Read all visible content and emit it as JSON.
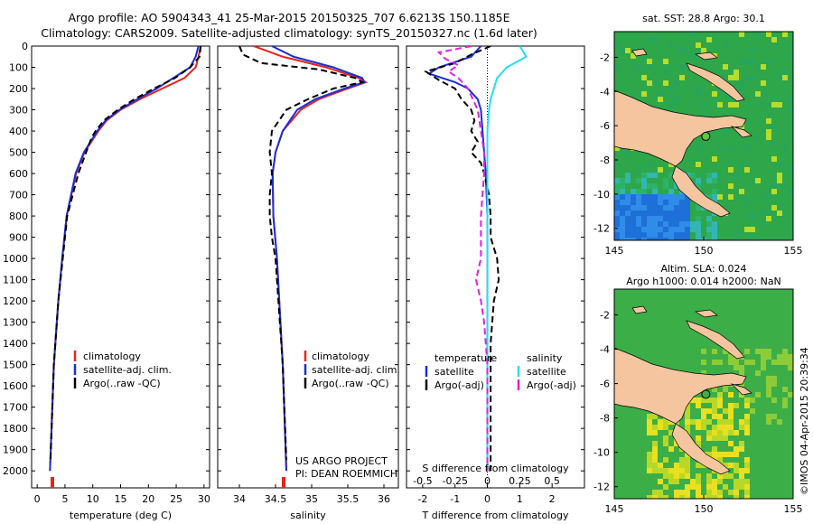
{
  "titles": {
    "line1": "Argo profile: AO 5904343_41 25-Mar-2015 20150325_707 6.6213S 150.1185E",
    "line2": "Climatology: CARS2009. Satellite-adjusted climatology: synTS_20150327.nc (1.6d later)"
  },
  "colors": {
    "climatology": "#e8241c",
    "satellite": "#1a2fd6",
    "argo": "#000000",
    "sat_salinity": "#22e0f0",
    "argo_salinity": "#e020e0",
    "land": "#f5c5a0"
  },
  "chart_data": [
    {
      "type": "line",
      "panel": "temperature",
      "xlabel": "temperature (deg C)",
      "ylabel": "",
      "xlim": [
        -1,
        31
      ],
      "ylim": [
        2080,
        0
      ],
      "xticks": [
        "0",
        "5",
        "10",
        "15",
        "20",
        "25",
        "30"
      ],
      "yticks": [
        "0",
        "100",
        "200",
        "300",
        "400",
        "500",
        "600",
        "700",
        "800",
        "900",
        "1000",
        "1100",
        "1200",
        "1300",
        "1400",
        "1500",
        "1600",
        "1700",
        "1800",
        "1900",
        "2000"
      ],
      "legend": [
        "climatology",
        "satellite-adj. clim.",
        "Argo(..raw -QC)"
      ],
      "series": [
        {
          "name": "climatology",
          "depth": [
            0,
            50,
            100,
            150,
            200,
            250,
            300,
            350,
            400,
            500,
            600,
            800,
            1000,
            1200,
            1500,
            2000
          ],
          "values": [
            29.4,
            29.0,
            28.5,
            26.5,
            22.5,
            18.5,
            15.0,
            12.5,
            11.0,
            8.5,
            7.0,
            5.3,
            4.5,
            3.8,
            3.0,
            2.3
          ]
        },
        {
          "name": "satellite-adj. clim.",
          "depth": [
            0,
            50,
            100,
            150,
            200,
            250,
            300,
            350,
            400,
            500,
            600,
            800,
            1000,
            1200,
            1500,
            2000
          ],
          "values": [
            29.0,
            28.5,
            27.5,
            24.5,
            21.5,
            18.0,
            14.8,
            12.3,
            10.8,
            8.4,
            6.9,
            5.3,
            4.5,
            3.8,
            3.0,
            2.3
          ]
        },
        {
          "name": "Argo(..raw -QC)",
          "depth": [
            0,
            50,
            100,
            150,
            200,
            250,
            300,
            350,
            400,
            430,
            500,
            600,
            800,
            1000,
            1200,
            1500,
            1950
          ],
          "values": [
            29.4,
            29.2,
            27.5,
            24.8,
            21.0,
            17.5,
            14.5,
            12.0,
            10.5,
            9.8,
            8.8,
            7.4,
            5.4,
            4.6,
            3.8,
            3.0,
            2.4
          ]
        }
      ]
    },
    {
      "type": "line",
      "panel": "salinity",
      "xlabel": "salinity",
      "ylabel": "",
      "xlim": [
        33.7,
        36.2
      ],
      "ylim": [
        2080,
        0
      ],
      "xticks": [
        "34",
        "34.5",
        "35",
        "35.5",
        "36"
      ],
      "legend": [
        "climatology",
        "satellite-adj. clim.",
        "Argo(..raw -QC)"
      ],
      "series": [
        {
          "name": "climatology",
          "depth": [
            0,
            50,
            100,
            150,
            170,
            200,
            250,
            300,
            400,
            500,
            600,
            800,
            1000,
            1500,
            2000
          ],
          "values": [
            34.2,
            34.6,
            35.2,
            35.65,
            35.75,
            35.5,
            35.1,
            34.85,
            34.6,
            34.5,
            34.46,
            34.47,
            34.52,
            34.6,
            34.65
          ]
        },
        {
          "name": "satellite-adj. clim.",
          "depth": [
            0,
            50,
            100,
            150,
            170,
            200,
            250,
            300,
            400,
            500,
            600,
            800,
            1000,
            1500,
            2000
          ],
          "values": [
            34.45,
            34.75,
            35.3,
            35.7,
            35.73,
            35.45,
            35.05,
            34.8,
            34.6,
            34.5,
            34.46,
            34.47,
            34.52,
            34.6,
            34.65
          ]
        },
        {
          "name": "Argo(..raw -QC)",
          "depth": [
            0,
            40,
            80,
            110,
            150,
            170,
            200,
            250,
            300,
            350,
            400,
            500,
            600,
            700,
            800,
            900,
            1000,
            1500,
            1950
          ],
          "values": [
            34.0,
            34.05,
            34.3,
            35.1,
            35.6,
            35.7,
            35.3,
            34.95,
            34.65,
            34.55,
            34.45,
            34.42,
            34.45,
            34.42,
            34.42,
            34.45,
            34.5,
            34.6,
            34.65
          ]
        }
      ]
    },
    {
      "type": "line",
      "panel": "difference",
      "xlabel": "T difference from climatology",
      "xlabel_top": "S difference from climatology",
      "xlim": [
        -2.5,
        3.0
      ],
      "ylim": [
        2080,
        0
      ],
      "xticks": [
        "-2",
        "-1",
        "0",
        "1",
        "2"
      ],
      "xticks_top": [
        "-0.5",
        "-0.25",
        "0",
        "0.25",
        "0.5"
      ],
      "legend": {
        "temperature": "temperature",
        "salinity": "salinity",
        "satellite": "satellite",
        "argo_adj": "Argo(-adj)"
      },
      "series": [
        {
          "name": "temperature satellite",
          "depth": [
            0,
            50,
            100,
            130,
            170,
            200,
            250,
            300,
            400,
            500,
            600,
            800,
            1000,
            2000
          ],
          "values": [
            -0.2,
            -0.5,
            -1.5,
            -1.8,
            -1.0,
            -0.6,
            -0.3,
            -0.2,
            -0.15,
            -0.1,
            -0.05,
            0.0,
            0.0,
            0.0
          ]
        },
        {
          "name": "temperature Argo(-adj)",
          "depth": [
            0,
            40,
            80,
            120,
            160,
            200,
            250,
            300,
            350,
            400,
            450,
            500,
            550,
            600,
            700,
            800,
            900,
            1000,
            1100,
            1200,
            1400,
            1700,
            2000
          ],
          "values": [
            0.1,
            -0.5,
            -1.0,
            -1.9,
            -1.5,
            -1.0,
            -0.8,
            -0.5,
            -0.4,
            -0.5,
            -0.3,
            -0.5,
            -0.2,
            -0.1,
            0.05,
            0.1,
            0.1,
            0.3,
            0.35,
            0.2,
            0.1,
            0.1,
            0.1
          ]
        },
        {
          "name": "salinity satellite",
          "depth": [
            0,
            50,
            100,
            150,
            200,
            250,
            300,
            400,
            500,
            600,
            800,
            1000,
            2000
          ],
          "values": [
            1.0,
            1.2,
            0.6,
            0.3,
            0.2,
            0.1,
            0.05,
            0.0,
            0.0,
            0.0,
            0.0,
            0.0,
            0.0
          ]
        },
        {
          "name": "salinity Argo(-adj)",
          "depth": [
            0,
            30,
            60,
            90,
            120,
            150,
            200,
            300,
            400,
            500,
            600,
            800,
            1000,
            1100,
            1200,
            1300,
            1500,
            2000
          ],
          "values": [
            -0.5,
            -1.5,
            -1.3,
            -0.9,
            -1.2,
            -0.9,
            -0.6,
            -0.3,
            -0.2,
            -0.1,
            -0.1,
            -0.2,
            -0.2,
            -0.35,
            -0.2,
            -0.1,
            0.0,
            0.0
          ]
        }
      ]
    },
    {
      "type": "heatmap",
      "panel": "sst_map",
      "title": "sat. SST: 28.8  Argo: 30.1",
      "xticks": [
        "145",
        "150",
        "155"
      ],
      "yticks": [
        "-2",
        "-4",
        "-6",
        "-8",
        "-10",
        "-12"
      ],
      "xlim": [
        145,
        155
      ],
      "ylim": [
        -12.7,
        -0.5
      ],
      "marker": {
        "lon": 150.1185,
        "lat": -6.6213
      }
    },
    {
      "type": "heatmap",
      "panel": "sla_map",
      "title1": "Altim. SLA: 0.024",
      "title2": "Argo h1000: 0.014  h2000: NaN",
      "xticks": [
        "145",
        "150",
        "155"
      ],
      "yticks": [
        "-2",
        "-4",
        "-6",
        "-8",
        "-10",
        "-12"
      ],
      "xlim": [
        145,
        155
      ],
      "ylim": [
        -12.7,
        -0.5
      ],
      "marker": {
        "lon": 150.1185,
        "lat": -6.6213
      }
    }
  ],
  "legend_labels": {
    "climatology": "climatology",
    "satellite_adj": "satellite-adj. clim.",
    "argo_raw": "Argo(..raw -QC)",
    "temperature": "temperature",
    "salinity": "salinity",
    "satellite": "satellite",
    "argo_adj": "Argo(-adj)"
  },
  "credit": {
    "line1": "US ARGO PROJECT",
    "line2": "PI: DEAN ROEMMICH"
  },
  "watermark": "©IMOS 04-Apr-2015 20:39:34"
}
